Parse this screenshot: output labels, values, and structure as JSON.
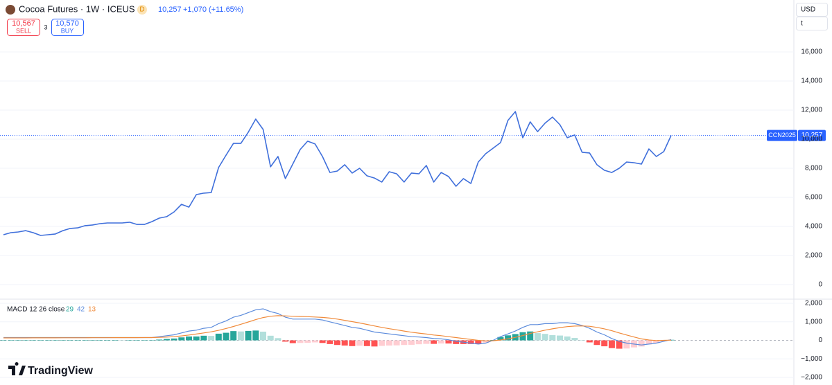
{
  "header": {
    "symbol": "Cocoa Futures · 1W · ICEUS",
    "badge": "D",
    "price": "10,257",
    "change": "+1,070 (+11.65%)",
    "sell_price": "10,567",
    "sell_label": "SELL",
    "spread": "3",
    "buy_price": "10,570",
    "buy_label": "BUY",
    "currency": "USD",
    "unit": "t",
    "brand": "TradingView"
  },
  "chart_data": [
    {
      "type": "line",
      "grid": true,
      "series": [
        {
          "color": "#3f6fdb",
          "values": [
            3430,
            3570,
            3620,
            3710,
            3570,
            3380,
            3430,
            3480,
            3710,
            3860,
            3900,
            4050,
            4100,
            4190,
            4240,
            4240,
            4240,
            4290,
            4140,
            4140,
            4330,
            4570,
            4670,
            5000,
            5520,
            5330,
            6190,
            6290,
            6330,
            8050,
            8900,
            9710,
            9710,
            10480,
            11380,
            10670,
            8100,
            8810,
            7290,
            8290,
            9290,
            9860,
            9670,
            8810,
            7710,
            7810,
            8240,
            7670,
            8000,
            7480,
            7330,
            7050,
            7760,
            7620,
            7050,
            7670,
            7620,
            8190,
            7050,
            7710,
            7430,
            6760,
            7290,
            6950,
            8430,
            9000,
            9380,
            9760,
            11290,
            11900,
            10100,
            11190,
            10520,
            11100,
            11520,
            11000,
            10100,
            10290,
            9100,
            9050,
            8240,
            7860,
            7710,
            8000,
            8430,
            8380,
            8290,
            9330,
            8810,
            9140,
            10257
          ]
        }
      ],
      "ylim": [
        -1000,
        19570
      ],
      "yticks": [
        0,
        {
          "value": 2000,
          "label": "2,000"
        },
        {
          "value": 4000,
          "label": "4,000"
        },
        {
          "value": 6000,
          "label": "6,000"
        },
        {
          "value": 8000,
          "label": "8,000"
        },
        {
          "value": 10000,
          "label": "10,000"
        },
        {
          "value": 12000,
          "label": "12,000"
        },
        {
          "value": 14000,
          "label": "14,000"
        },
        {
          "value": 16000,
          "label": "16,000"
        }
      ],
      "last_price": {
        "symbol": "CCN2025",
        "value": 10257,
        "label": "10,257",
        "color": "#2962ff"
      }
    },
    {
      "type": "macd",
      "title": "MACD 12 26 close",
      "legend_values": [
        29,
        42,
        13
      ],
      "grid": true,
      "histogram": {
        "colors": {
          "grow_above": "#26a69a",
          "fall_above": "#b2dfdb",
          "grow_below": "#ffcdd2",
          "fall_below": "#ff5252"
        },
        "values": [
          20,
          20,
          20,
          20,
          20,
          20,
          20,
          20,
          20,
          20,
          20,
          20,
          20,
          20,
          20,
          20,
          10,
          10,
          10,
          10,
          10,
          40,
          75,
          100,
          160,
          210,
          210,
          250,
          240,
          360,
          410,
          500,
          480,
          510,
          530,
          470,
          250,
          120,
          -70,
          -150,
          -140,
          -130,
          -110,
          -140,
          -200,
          -250,
          -280,
          -310,
          -290,
          -310,
          -330,
          -300,
          -280,
          -270,
          -250,
          -240,
          -210,
          -190,
          -190,
          -170,
          -170,
          -200,
          -200,
          -200,
          -200,
          -120,
          20,
          180,
          270,
          340,
          440,
          480,
          390,
          350,
          280,
          260,
          210,
          130,
          20,
          -110,
          -250,
          -320,
          -420,
          -450,
          -440,
          -380,
          -330,
          -220,
          -140,
          -50,
          29
        ]
      },
      "macd": {
        "color": "#5b8bdc",
        "values": [
          150,
          150,
          150,
          150,
          150,
          150,
          150,
          150,
          150,
          150,
          150,
          150,
          150,
          150,
          150,
          150,
          150,
          150,
          150,
          150,
          150,
          200,
          250,
          300,
          400,
          500,
          550,
          650,
          700,
          900,
          1050,
          1250,
          1350,
          1500,
          1650,
          1700,
          1550,
          1450,
          1250,
          1150,
          1150,
          1150,
          1150,
          1100,
          1000,
          900,
          800,
          700,
          650,
          550,
          450,
          400,
          350,
          300,
          250,
          200,
          180,
          150,
          100,
          80,
          30,
          -50,
          -100,
          -150,
          -200,
          -150,
          0,
          200,
          350,
          500,
          700,
          850,
          850,
          900,
          900,
          950,
          950,
          900,
          800,
          650,
          450,
          300,
          100,
          -50,
          -150,
          -200,
          -250,
          -200,
          -150,
          -50,
          42
        ]
      },
      "signal": {
        "color": "#f08a3a",
        "values": [
          130,
          131,
          132,
          133,
          134,
          135,
          136,
          137,
          138,
          139,
          140,
          141,
          142,
          143,
          144,
          145,
          146,
          147,
          148,
          149,
          150,
          160,
          175,
          200,
          240,
          290,
          340,
          400,
          460,
          540,
          640,
          750,
          870,
          990,
          1120,
          1230,
          1300,
          1330,
          1320,
          1300,
          1290,
          1280,
          1260,
          1240,
          1200,
          1150,
          1080,
          1010,
          940,
          860,
          780,
          700,
          630,
          570,
          500,
          440,
          390,
          340,
          290,
          250,
          200,
          150,
          100,
          50,
          0,
          -30,
          -20,
          20,
          80,
          160,
          260,
          370,
          460,
          550,
          620,
          690,
          740,
          770,
          780,
          760,
          700,
          620,
          520,
          400,
          290,
          180,
          80,
          20,
          -10,
          0,
          13
        ]
      },
      "ylim": [
        -2410,
        2225
      ],
      "yticks": [
        {
          "value": -2000,
          "label": "−2,000"
        },
        {
          "value": -1000,
          "label": "−1,000"
        },
        0,
        {
          "value": 1000,
          "label": "1,000"
        },
        {
          "value": 2000,
          "label": "2,000"
        }
      ]
    }
  ]
}
